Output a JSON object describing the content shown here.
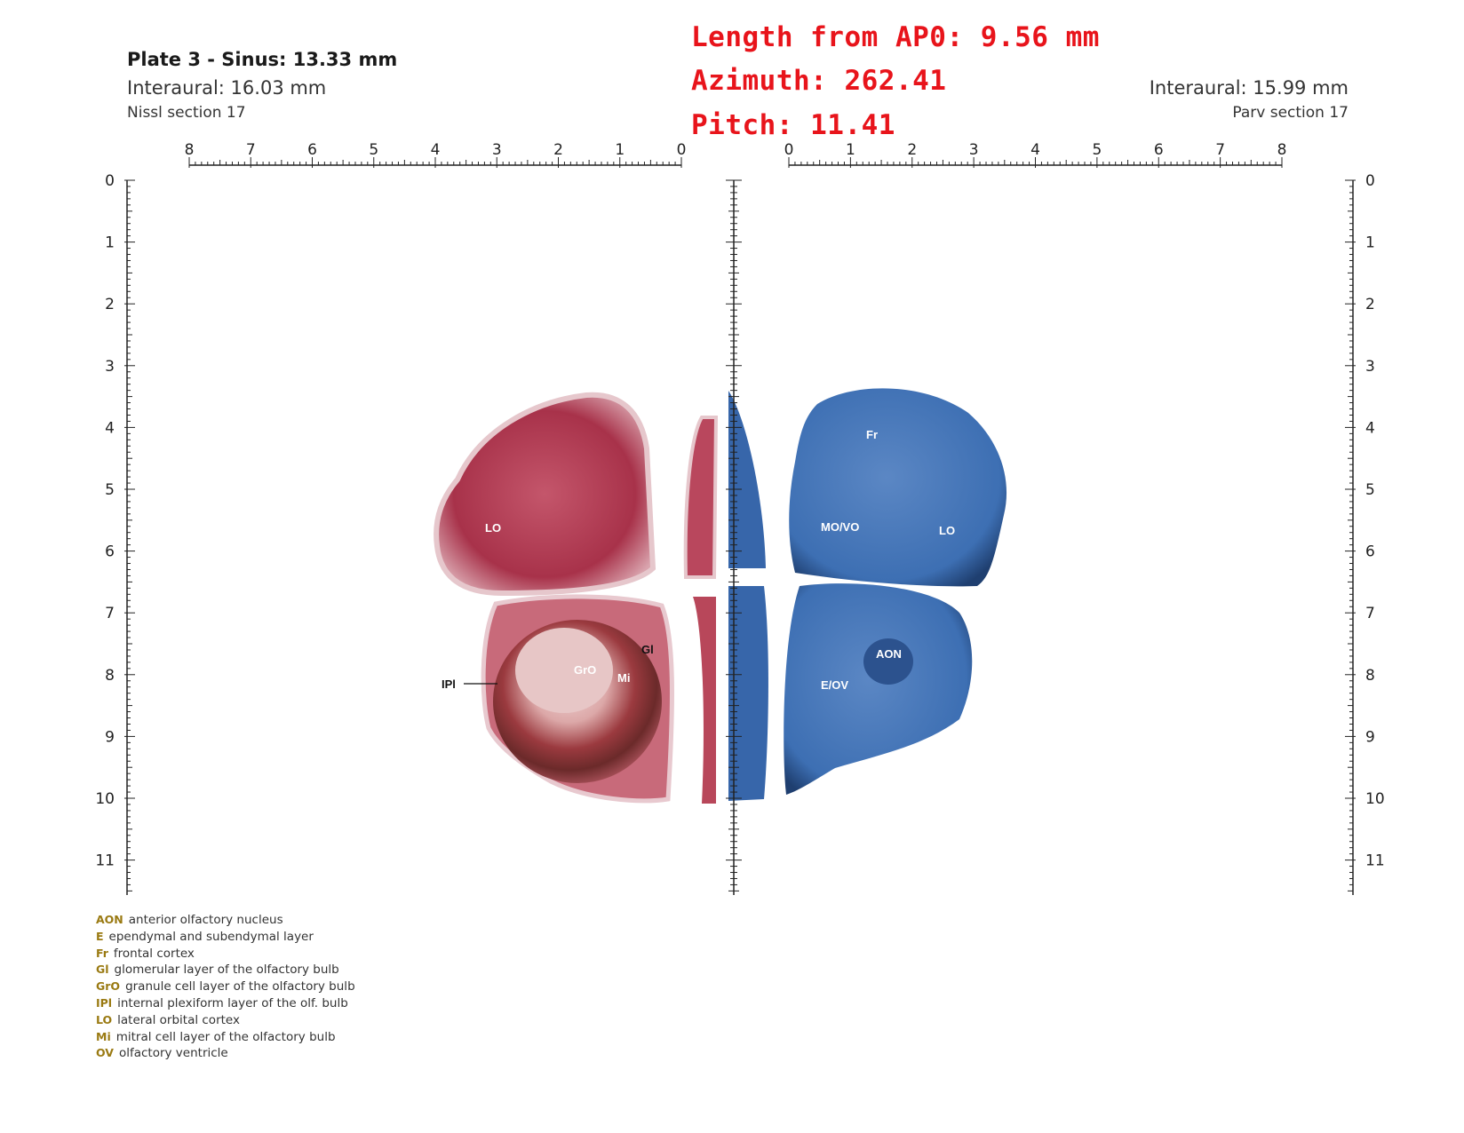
{
  "header": {
    "plate_title": "Plate 3 - Sinus: 13.33 mm",
    "interaural_left": "Interaural: 16.03 mm",
    "section_left": "Nissl section 17",
    "interaural_right": "Interaural: 15.99 mm",
    "section_right": "Parv section 17"
  },
  "overlay": {
    "length": "Length from AP0: 9.56 mm",
    "azimuth": "Azimuth: 262.41",
    "pitch": "Pitch: 11.41"
  },
  "rulers": {
    "top_left_ticks": [
      "8",
      "7",
      "6",
      "5",
      "4",
      "3",
      "2",
      "1",
      "0"
    ],
    "top_right_ticks": [
      "0",
      "1",
      "2",
      "3",
      "4",
      "5",
      "6",
      "7",
      "8"
    ],
    "left_ticks": [
      "0",
      "1",
      "2",
      "3",
      "4",
      "5",
      "6",
      "7",
      "8",
      "9",
      "10",
      "11"
    ],
    "right_ticks": [
      "0",
      "1",
      "2",
      "3",
      "4",
      "5",
      "6",
      "7",
      "8",
      "9",
      "10",
      "11"
    ]
  },
  "labels": {
    "nissl": {
      "lo": "LO",
      "gl": "Gl",
      "gro": "GrO",
      "mi": "Mi",
      "ipl": "IPl"
    },
    "parv": {
      "fr": "Fr",
      "movo": "MO/VO",
      "lo": "LO",
      "aon": "AON",
      "eov": "E/OV"
    }
  },
  "colors": {
    "nissl": "#a8324a",
    "parv": "#3d6fb3",
    "overlay": "#e8141b",
    "legend_abbr": "#9a7a12"
  },
  "legend": [
    {
      "abbr": "AON",
      "text": "anterior olfactory nucleus"
    },
    {
      "abbr": "E",
      "text": "ependymal and subendymal layer"
    },
    {
      "abbr": "Fr",
      "text": "frontal cortex"
    },
    {
      "abbr": "Gl",
      "text": "glomerular layer of the olfactory bulb"
    },
    {
      "abbr": "GrO",
      "text": "granule cell layer of the olfactory bulb"
    },
    {
      "abbr": "IPl",
      "text": "internal plexiform layer of the olf. bulb"
    },
    {
      "abbr": "LO",
      "text": "lateral orbital cortex"
    },
    {
      "abbr": "Mi",
      "text": "mitral cell layer of the olfactory bulb"
    },
    {
      "abbr": "OV",
      "text": "olfactory ventricle"
    }
  ]
}
